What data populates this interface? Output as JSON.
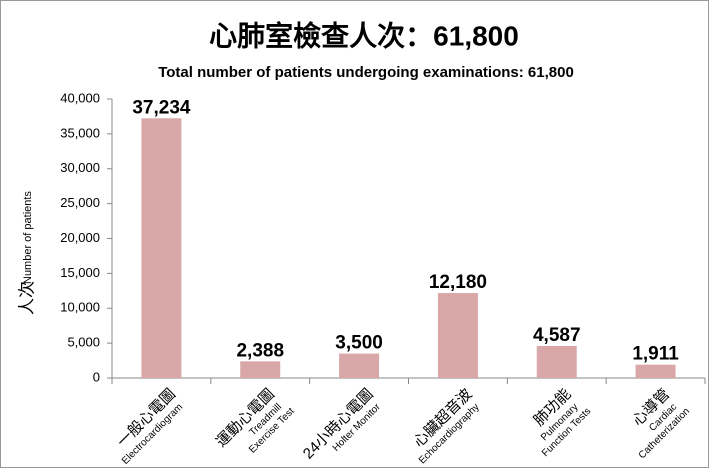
{
  "chart_data": {
    "type": "bar",
    "title": "心肺室檢查人次：61,800",
    "subtitle": "Total number of patients undergoing examinations: 61,800",
    "ylabel_zh": "人次",
    "ylabel_en": "Number of patients",
    "categories": [
      "一般心電圖",
      "運動心電圖",
      "24小時心電圖",
      "心臟超音波",
      "肺功能",
      "心導管"
    ],
    "categories_en": [
      [
        "Electrocardiogram"
      ],
      [
        "Treadmill",
        "Exercise Test"
      ],
      [
        "Holter Monitor"
      ],
      [
        "Echocardiography"
      ],
      [
        "Pulmonary",
        "Function Tests"
      ],
      [
        "Cardiac",
        "Catheterization"
      ]
    ],
    "values": [
      37234,
      2388,
      3500,
      12180,
      4587,
      1911
    ],
    "value_labels": [
      "37,234",
      "2,388",
      "3,500",
      "12,180",
      "4,587",
      "1,911"
    ],
    "color": "#d9a7a7",
    "ylim": [
      0,
      40000
    ],
    "yticks": [
      0,
      {
        "value": 5000,
        "label": "5,000"
      },
      {
        "value": 10000,
        "label": "10,000"
      },
      {
        "value": 15000,
        "label": "15,000"
      },
      {
        "value": 20000,
        "label": "20,000"
      },
      {
        "value": 25000,
        "label": "25,000"
      },
      {
        "value": 30000,
        "label": "30,000"
      },
      {
        "value": 35000,
        "label": "35,000"
      },
      {
        "value": 40000,
        "label": "40,000"
      }
    ],
    "grid": false
  }
}
